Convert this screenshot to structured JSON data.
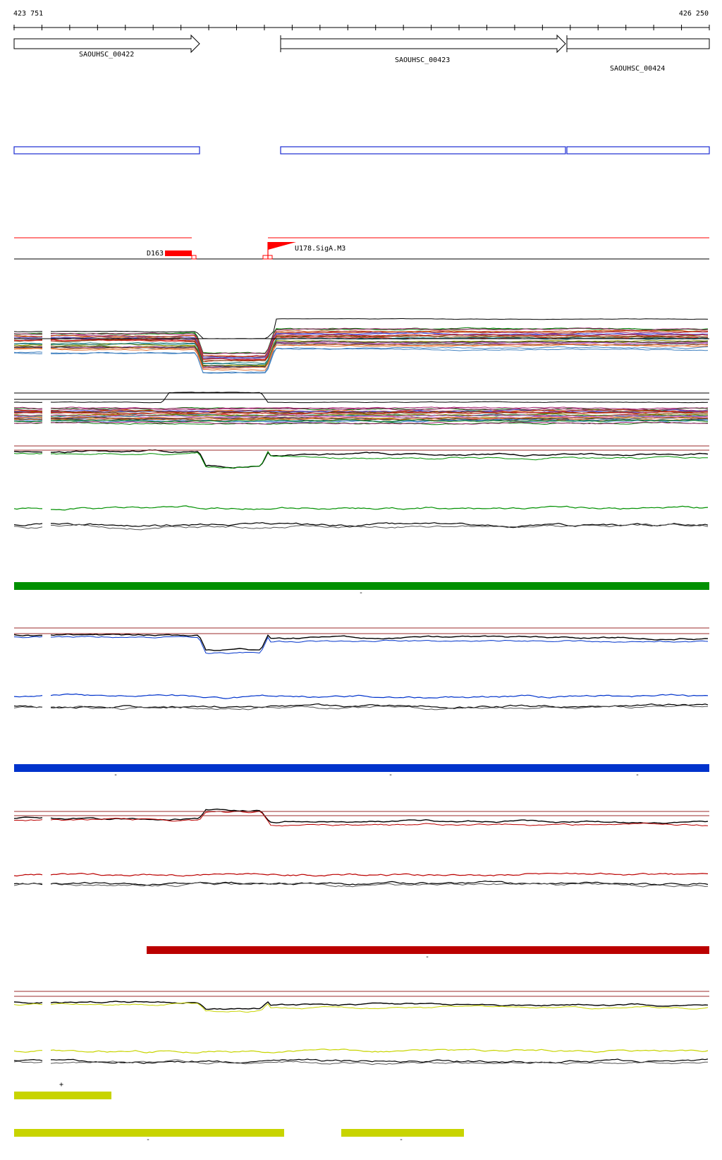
{
  "ruler": {
    "start_label": "423 751",
    "end_label": "426 250"
  },
  "genes": [
    {
      "name": "SAOUHSC_00422"
    },
    {
      "name": "SAOUHSC_00423"
    },
    {
      "name": "SAOUHSC_00424"
    }
  ],
  "features": [
    {
      "name": "D163"
    },
    {
      "name": "U178.SigA.M3"
    }
  ],
  "segment_marks": [
    {
      "text": "-"
    },
    {
      "text": "-"
    },
    {
      "text": "-"
    },
    {
      "text": "-"
    },
    {
      "text": "-"
    },
    {
      "text": "+"
    },
    {
      "text": "-"
    },
    {
      "text": "-"
    }
  ],
  "colors": {
    "gene_outline": "#000000",
    "cds_box": "#1a2bd1",
    "feature_red": "#ff0000",
    "threshold": "#9b2b2b",
    "green": "#009000",
    "blue": "#0033cc",
    "red": "#bb0000",
    "yellow": "#c8d400"
  }
}
